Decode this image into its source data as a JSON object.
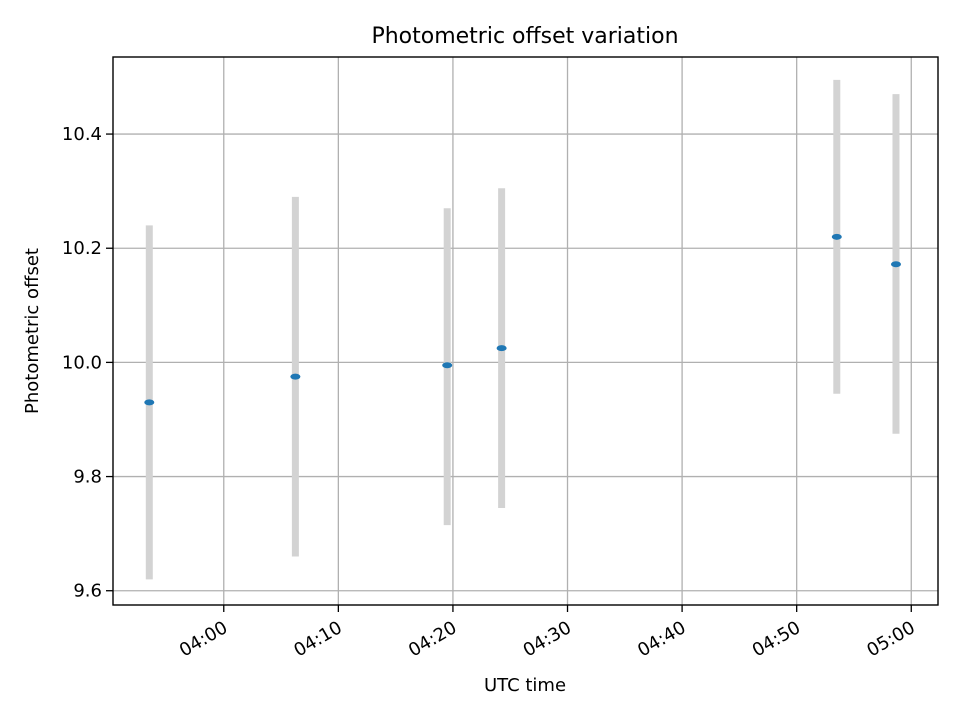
{
  "chart_data": {
    "type": "scatter",
    "title": "Photometric offset variation",
    "xlabel": "UTC time",
    "ylabel": "Photometric offset",
    "x_ticks": [
      "04:00",
      "04:10",
      "04:20",
      "04:30",
      "04:40",
      "04:50",
      "05:00"
    ],
    "y_ticks": [
      "9.6",
      "9.8",
      "10.0",
      "10.2",
      "10.4"
    ],
    "xlim": [
      "03:50:20",
      "05:02:20"
    ],
    "ylim": [
      9.575,
      10.535
    ],
    "grid": true,
    "series": [
      {
        "points": [
          {
            "x": "03:53:30",
            "y": 9.93,
            "yerr_low": 9.62,
            "yerr_high": 10.24
          },
          {
            "x": "04:06:15",
            "y": 9.975,
            "yerr_low": 9.66,
            "yerr_high": 10.29
          },
          {
            "x": "04:19:30",
            "y": 9.995,
            "yerr_low": 9.715,
            "yerr_high": 10.27
          },
          {
            "x": "04:24:15",
            "y": 10.025,
            "yerr_low": 9.745,
            "yerr_high": 10.305
          },
          {
            "x": "04:53:30",
            "y": 10.22,
            "yerr_low": 9.945,
            "yerr_high": 10.495
          },
          {
            "x": "04:58:40",
            "y": 10.172,
            "yerr_low": 9.875,
            "yerr_high": 10.47
          }
        ]
      }
    ],
    "colors": {
      "marker": "#1f77b4",
      "errorbar": "#d3d3d3",
      "grid": "#b0b0b0"
    }
  }
}
